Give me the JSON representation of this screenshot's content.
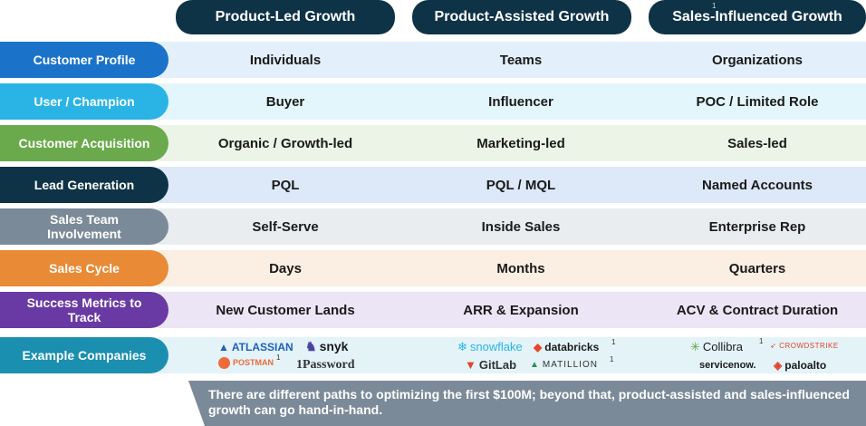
{
  "columns": [
    {
      "title": "Product-Led Growth",
      "sup": ""
    },
    {
      "title": "Product-Assisted Growth",
      "sup": ""
    },
    {
      "title": "Sales-Influenced Growth",
      "sup": "1"
    }
  ],
  "rows": [
    {
      "label": "Customer Profile",
      "color": "#1b73c9",
      "band": "#e3f0fc",
      "cells": [
        "Individuals",
        "Teams",
        "Organizations"
      ]
    },
    {
      "label": "User / Champion",
      "color": "#2ab4e6",
      "band": "#e3f6fc",
      "cells": [
        "Buyer",
        "Influencer",
        "POC / Limited Role"
      ]
    },
    {
      "label": "Customer Acquisition",
      "color": "#6aaa4c",
      "band": "#ecf4e8",
      "cells": [
        "Organic / Growth-led",
        "Marketing-led",
        "Sales-led"
      ]
    },
    {
      "label": "Lead Generation",
      "color": "#0f3346",
      "band": "#dde9f9",
      "cells": [
        "PQL",
        "PQL / MQL",
        "Named Accounts"
      ]
    },
    {
      "label": "Sales Team Involvement",
      "color": "#7b8a98",
      "band": "#eaedf0",
      "cells": [
        "Self-Serve",
        "Inside Sales",
        "Enterprise Rep"
      ]
    },
    {
      "label": "Sales Cycle",
      "color": "#e88a36",
      "band": "#fbeee2",
      "cells": [
        "Days",
        "Months",
        "Quarters"
      ]
    },
    {
      "label": "Success Metrics to Track",
      "color": "#6a3aa4",
      "band": "#ece5f5",
      "cells": [
        "New Customer Lands",
        "ARR & Expansion",
        "ACV & Contract Duration"
      ]
    },
    {
      "label": "Example Companies",
      "color": "#1b8fb0",
      "band": "#e3f3f8",
      "cells": []
    }
  ],
  "logos": {
    "atlassian": "ATLASSIAN",
    "postman": "POSTMAN",
    "postman_sup": "1",
    "snyk": "snyk",
    "onepassword": "1Password",
    "snowflake": "snowflake",
    "databricks": "databricks",
    "databricks_sup": "1",
    "gitlab": "GitLab",
    "matillion": "MATILLION",
    "matillion_sup": "1",
    "collibra": "Collibra",
    "collibra_sup": "1",
    "crowdstrike": "CROWDSTRIKE",
    "servicenow": "servicenow.",
    "paloalto": "paloalto"
  },
  "footer": "There are different paths to optimizing the first $100M; beyond that, product-assisted and sales-influenced growth can go hand-in-hand.",
  "colors": {
    "header": "#0f3346",
    "footer": "#7b8a98"
  }
}
